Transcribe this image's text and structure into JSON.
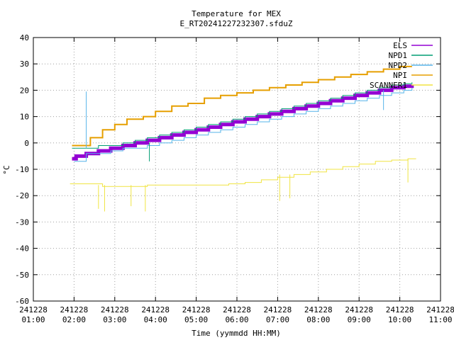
{
  "chart_data": {
    "type": "line",
    "title": "Temperature for MEX",
    "subtitle": "E_RT20241227232307.sfduZ",
    "xlabel": "Time (yymmdd HH:MM)",
    "ylabel": "°C",
    "ylim": [
      -60,
      40
    ],
    "yticks": [
      "40",
      "30",
      "20",
      "10",
      "0",
      "-10",
      "-20",
      "-30",
      "-40",
      "-50",
      "-60"
    ],
    "xlim_hours": [
      1,
      11
    ],
    "xticks": [
      {
        "date": "241228",
        "time": "01:00"
      },
      {
        "date": "241228",
        "time": "02:00"
      },
      {
        "date": "241228",
        "time": "03:00"
      },
      {
        "date": "241228",
        "time": "04:00"
      },
      {
        "date": "241228",
        "time": "05:00"
      },
      {
        "date": "241228",
        "time": "06:00"
      },
      {
        "date": "241228",
        "time": "07:00"
      },
      {
        "date": "241228",
        "time": "08:00"
      },
      {
        "date": "241228",
        "time": "09:00"
      },
      {
        "date": "241228",
        "time": "10:00"
      },
      {
        "date": "241228",
        "time": "11:00"
      }
    ],
    "grid": true,
    "legend_position": "top-right",
    "series": [
      {
        "name": "ELS",
        "color": "#9400d3",
        "width": 5,
        "x": [
          1.95,
          2.05,
          2.3,
          2.6,
          2.9,
          3.2,
          3.5,
          3.8,
          4.1,
          4.4,
          4.7,
          5.0,
          5.3,
          5.6,
          5.9,
          6.2,
          6.5,
          6.8,
          7.1,
          7.4,
          7.7,
          8.0,
          8.3,
          8.6,
          8.9,
          9.2,
          9.5,
          9.8,
          10.1,
          10.3
        ],
        "y": [
          -6,
          -5,
          -4,
          -3,
          -2,
          -1,
          0,
          1,
          2,
          3,
          4,
          5,
          6,
          7,
          8,
          9,
          10,
          11,
          12,
          13,
          14,
          15,
          16,
          17,
          18,
          19,
          20,
          21,
          21.5,
          22
        ]
      },
      {
        "name": "NPD1",
        "color": "#009e73",
        "width": 1,
        "x": [
          1.95,
          2.3,
          2.6,
          2.9,
          3.2,
          3.5,
          3.8,
          4.1,
          4.4,
          4.7,
          5.0,
          5.3,
          5.6,
          5.9,
          6.2,
          6.5,
          6.8,
          7.1,
          7.4,
          7.7,
          8.0,
          8.3,
          8.6,
          8.9,
          9.2,
          9.5,
          9.8,
          10.1,
          10.3
        ],
        "y": [
          -2,
          -2,
          -1,
          -1,
          0,
          1,
          2,
          3,
          4,
          5,
          6,
          7,
          8,
          9,
          10,
          11,
          12,
          13,
          14,
          15,
          16,
          17,
          18,
          19,
          20,
          21,
          22,
          22.5,
          23
        ]
      },
      {
        "name": "NPD2",
        "color": "#56b4e9",
        "width": 1,
        "x": [
          2.0,
          2.3,
          2.6,
          2.9,
          3.2,
          3.5,
          3.8,
          4.1,
          4.4,
          4.7,
          5.0,
          5.3,
          5.6,
          5.9,
          6.2,
          6.5,
          6.8,
          7.1,
          7.4,
          7.7,
          8.0,
          8.3,
          8.6,
          8.9,
          9.2,
          9.5,
          9.8,
          10.1,
          10.3
        ],
        "y": [
          -7,
          -4,
          -4,
          -3,
          -2,
          -2,
          -1,
          0,
          1,
          2,
          3,
          4,
          5,
          6,
          7,
          8,
          9,
          10,
          11,
          12,
          13,
          14,
          15,
          16,
          17,
          18,
          19,
          20,
          21
        ]
      },
      {
        "name": "NPI",
        "color": "#e69f00",
        "width": 2,
        "x": [
          1.95,
          2.4,
          2.7,
          3.0,
          3.3,
          3.7,
          4.0,
          4.4,
          4.8,
          5.2,
          5.6,
          6.0,
          6.4,
          6.8,
          7.2,
          7.6,
          8.0,
          8.4,
          8.8,
          9.2,
          9.6,
          10.0,
          10.3
        ],
        "y": [
          -1,
          2,
          5,
          7,
          9,
          10,
          12,
          14,
          15,
          17,
          18,
          19,
          20,
          21,
          22,
          23,
          24,
          25,
          26,
          27,
          28,
          29,
          29
        ]
      },
      {
        "name": "SCANNER1",
        "color": "#f0e442",
        "width": 1,
        "x": [
          1.9,
          2.4,
          2.7,
          3.0,
          3.4,
          3.8,
          4.2,
          4.6,
          5.0,
          5.4,
          5.8,
          6.2,
          6.6,
          7.0,
          7.4,
          7.8,
          8.2,
          8.6,
          9.0,
          9.4,
          9.8,
          10.2,
          10.4
        ],
        "y": [
          -15.5,
          -15.5,
          -16.5,
          -16.5,
          -16.5,
          -16,
          -16,
          -16,
          -16,
          -16,
          -15.5,
          -15,
          -14,
          -13,
          -12,
          -11,
          -10,
          -9,
          -8,
          -7,
          -6.5,
          -6,
          -6
        ]
      }
    ],
    "spikes": [
      {
        "series": 2,
        "x": 2.3,
        "y0": -2,
        "y1": 19.5
      },
      {
        "series": 1,
        "x": 3.85,
        "y0": 0,
        "y1": -7
      },
      {
        "series": 4,
        "x": 2.6,
        "y0": -16,
        "y1": -25
      },
      {
        "series": 4,
        "x": 2.75,
        "y0": -16,
        "y1": -26
      },
      {
        "series": 4,
        "x": 3.4,
        "y0": -16,
        "y1": -24
      },
      {
        "series": 4,
        "x": 3.75,
        "y0": -16,
        "y1": -26
      },
      {
        "series": 4,
        "x": 7.05,
        "y0": -12,
        "y1": -22
      },
      {
        "series": 4,
        "x": 7.3,
        "y0": -12,
        "y1": -21
      },
      {
        "series": 4,
        "x": 10.2,
        "y0": -6,
        "y1": -15
      },
      {
        "series": 2,
        "x": 9.6,
        "y0": 20,
        "y1": 12.5
      }
    ]
  }
}
